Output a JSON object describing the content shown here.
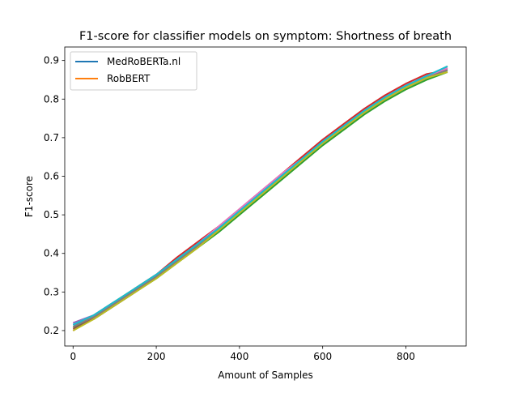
{
  "chart_data": {
    "type": "line",
    "title": "F1-score for classifier models on symptom: Shortness of breath",
    "xlabel": "Amount of Samples",
    "ylabel": "F1-score",
    "xlim": [
      -20,
      945
    ],
    "ylim": [
      0.16,
      0.935
    ],
    "xticks": [
      0,
      200,
      400,
      600,
      800
    ],
    "yticks": [
      0.2,
      0.3,
      0.4,
      0.5,
      0.6,
      0.7,
      0.8,
      0.9
    ],
    "grid": false,
    "legend_position": "top-left",
    "legend": [
      {
        "label": "MedRoBERTa.nl",
        "color": "#1f77b4"
      },
      {
        "label": "RobBERT",
        "color": "#ff7f0e"
      }
    ],
    "series": [
      {
        "color": "#1f77b4",
        "x": [
          0,
          50,
          100,
          150,
          200,
          250,
          300,
          350,
          400,
          450,
          500,
          550,
          600,
          650,
          700,
          750,
          800,
          850,
          900
        ],
        "y": [
          0.215,
          0.235,
          0.27,
          0.305,
          0.34,
          0.38,
          0.425,
          0.465,
          0.51,
          0.555,
          0.6,
          0.645,
          0.69,
          0.73,
          0.77,
          0.805,
          0.835,
          0.86,
          0.88
        ]
      },
      {
        "color": "#ff7f0e",
        "x": [
          0,
          50,
          100,
          150,
          200,
          250,
          300,
          350,
          400,
          450,
          500,
          550,
          600,
          650,
          700,
          750,
          800,
          850,
          900
        ],
        "y": [
          0.205,
          0.24,
          0.275,
          0.31,
          0.345,
          0.385,
          0.42,
          0.46,
          0.505,
          0.55,
          0.595,
          0.64,
          0.685,
          0.725,
          0.765,
          0.8,
          0.83,
          0.855,
          0.885
        ]
      },
      {
        "color": "#2ca02c",
        "x": [
          0,
          50,
          100,
          150,
          200,
          250,
          300,
          350,
          400,
          450,
          500,
          550,
          600,
          650,
          700,
          750,
          800,
          850,
          900
        ],
        "y": [
          0.21,
          0.23,
          0.265,
          0.3,
          0.335,
          0.375,
          0.415,
          0.455,
          0.5,
          0.545,
          0.59,
          0.635,
          0.68,
          0.72,
          0.76,
          0.795,
          0.825,
          0.85,
          0.87
        ]
      },
      {
        "color": "#d62728",
        "x": [
          0,
          50,
          100,
          150,
          200,
          250,
          300,
          350,
          400,
          450,
          500,
          550,
          600,
          650,
          700,
          750,
          800,
          850,
          900
        ],
        "y": [
          0.2,
          0.235,
          0.27,
          0.31,
          0.345,
          0.39,
          0.43,
          0.47,
          0.515,
          0.56,
          0.605,
          0.65,
          0.695,
          0.735,
          0.775,
          0.81,
          0.84,
          0.865,
          0.875
        ]
      },
      {
        "color": "#9467bd",
        "x": [
          0,
          50,
          100,
          150,
          200,
          250,
          300,
          350,
          400,
          450,
          500,
          550,
          600,
          650,
          700,
          750,
          800,
          850,
          900
        ],
        "y": [
          0.22,
          0.24,
          0.275,
          0.305,
          0.34,
          0.38,
          0.42,
          0.465,
          0.51,
          0.555,
          0.6,
          0.64,
          0.685,
          0.725,
          0.765,
          0.8,
          0.83,
          0.855,
          0.88
        ]
      },
      {
        "color": "#8c564b",
        "x": [
          0,
          50,
          100,
          150,
          200,
          250,
          300,
          350,
          400,
          450,
          500,
          550,
          600,
          650,
          700,
          750,
          800,
          850,
          900
        ],
        "y": [
          0.205,
          0.23,
          0.265,
          0.3,
          0.34,
          0.38,
          0.42,
          0.46,
          0.505,
          0.55,
          0.595,
          0.64,
          0.685,
          0.725,
          0.765,
          0.8,
          0.83,
          0.855,
          0.875
        ]
      },
      {
        "color": "#e377c2",
        "x": [
          0,
          50,
          100,
          150,
          200,
          250,
          300,
          350,
          400,
          450,
          500,
          550,
          600,
          650,
          700,
          750,
          800,
          850,
          900
        ],
        "y": [
          0.215,
          0.24,
          0.27,
          0.305,
          0.345,
          0.385,
          0.425,
          0.47,
          0.515,
          0.56,
          0.605,
          0.645,
          0.69,
          0.73,
          0.77,
          0.805,
          0.835,
          0.86,
          0.88
        ]
      },
      {
        "color": "#7f7f7f",
        "x": [
          0,
          50,
          100,
          150,
          200,
          250,
          300,
          350,
          400,
          450,
          500,
          550,
          600,
          650,
          700,
          750,
          800,
          850,
          900
        ],
        "y": [
          0.21,
          0.235,
          0.27,
          0.305,
          0.34,
          0.38,
          0.42,
          0.46,
          0.505,
          0.55,
          0.595,
          0.64,
          0.685,
          0.725,
          0.765,
          0.8,
          0.83,
          0.855,
          0.875
        ]
      },
      {
        "color": "#bcbd22",
        "x": [
          0,
          50,
          100,
          150,
          200,
          250,
          300,
          350,
          400,
          450,
          500,
          550,
          600,
          650,
          700,
          750,
          800,
          850,
          900
        ],
        "y": [
          0.2,
          0.23,
          0.265,
          0.3,
          0.335,
          0.375,
          0.415,
          0.46,
          0.505,
          0.55,
          0.595,
          0.64,
          0.685,
          0.725,
          0.765,
          0.8,
          0.83,
          0.855,
          0.87
        ]
      },
      {
        "color": "#17becf",
        "x": [
          0,
          50,
          100,
          150,
          200,
          250,
          300,
          350,
          400,
          450,
          500,
          550,
          600,
          650,
          700,
          750,
          800,
          850,
          900
        ],
        "y": [
          0.215,
          0.24,
          0.275,
          0.31,
          0.345,
          0.385,
          0.425,
          0.465,
          0.51,
          0.555,
          0.6,
          0.645,
          0.69,
          0.73,
          0.77,
          0.805,
          0.835,
          0.86,
          0.885
        ]
      }
    ]
  }
}
